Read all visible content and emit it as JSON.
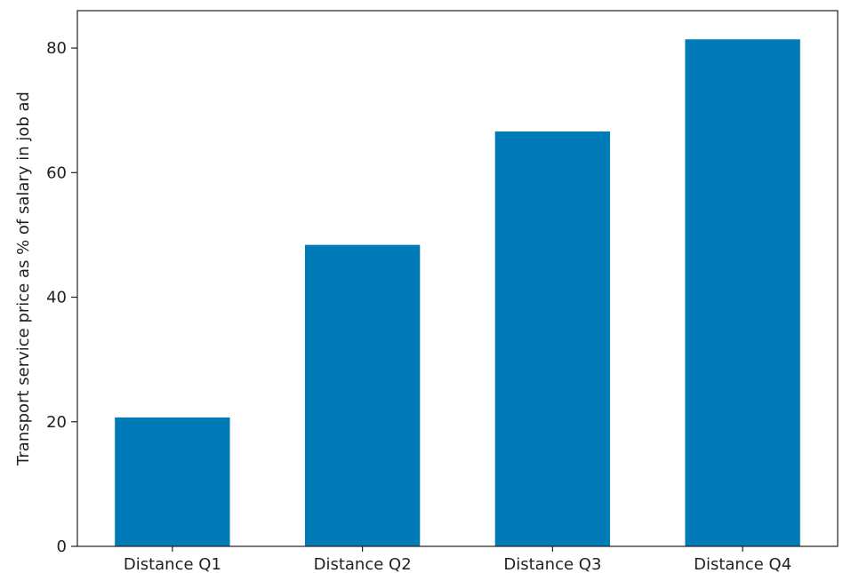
{
  "chart_data": {
    "type": "bar",
    "title": "",
    "xlabel": "",
    "ylabel": "Transport service price as % of salary in job ad",
    "categories": [
      "Distance Q1",
      "Distance Q2",
      "Distance Q3",
      "Distance Q4"
    ],
    "values": [
      20.7,
      48.4,
      66.6,
      81.4
    ],
    "ylim": [
      0,
      86
    ],
    "yticks": [
      0,
      20,
      40,
      60,
      80
    ],
    "ytick_labels": [
      "0",
      "20",
      "40",
      "60",
      "80"
    ],
    "grid": false,
    "legend": "none",
    "bar_color": "#007bb8",
    "axis_color": "#231f20"
  }
}
